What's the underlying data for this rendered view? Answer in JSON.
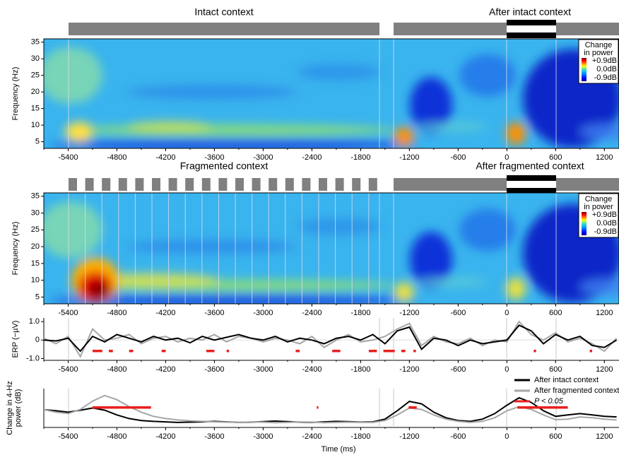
{
  "chart_data": [
    {
      "type": "heatmap",
      "annotations": [
        "Intact context",
        "After intact context"
      ],
      "ylabel": "Frequency (Hz)",
      "xlim": [
        -5700,
        1380
      ],
      "xticks": [
        -5400,
        -4800,
        -4200,
        -3600,
        -3000,
        -2400,
        -1800,
        -1200,
        -600,
        0,
        600,
        1200
      ],
      "ylim": [
        3,
        36
      ],
      "yticks": [
        5,
        10,
        15,
        20,
        25,
        30,
        35
      ],
      "colorbar": {
        "title": [
          "Change",
          "in power"
        ],
        "labels": [
          "+0.9dB",
          "0.0dB",
          "-0.9dB"
        ]
      }
    },
    {
      "type": "heatmap",
      "annotations": [
        "Fragmented context",
        "After fragmented context"
      ],
      "ylabel": "Frequency (Hz)",
      "xlim": [
        -5700,
        1380
      ],
      "xticks": [
        -5400,
        -4800,
        -4200,
        -3600,
        -3000,
        -2400,
        -1800,
        -1200,
        -600,
        0,
        600,
        1200
      ],
      "ylim": [
        3,
        36
      ],
      "yticks": [
        5,
        10,
        15,
        20,
        25,
        30,
        35
      ],
      "colorbar": {
        "title": [
          "Change",
          "in power"
        ],
        "labels": [
          "+0.9dB",
          "0.0dB",
          "-0.9dB"
        ]
      }
    },
    {
      "type": "line",
      "ylabel": [
        "ERP (−µV)"
      ],
      "xlim": [
        -5700,
        1380
      ],
      "xticks": [
        -5400,
        -4800,
        -4200,
        -3600,
        -3000,
        -2400,
        -1800,
        -1200,
        -600,
        0,
        600,
        1200
      ],
      "ylim": [
        -1.1,
        1.2
      ],
      "yticks": [
        {
          "value": 1,
          "label": "1.0"
        },
        0,
        {
          "value": -1,
          "label": "-1.0"
        }
      ],
      "x": [
        -5700,
        -5550,
        -5400,
        -5250,
        -5100,
        -4950,
        -4800,
        -4650,
        -4500,
        -4350,
        -4200,
        -4050,
        -3900,
        -3750,
        -3600,
        -3450,
        -3300,
        -3150,
        -3000,
        -2850,
        -2700,
        -2550,
        -2400,
        -2250,
        -2100,
        -1950,
        -1800,
        -1650,
        -1500,
        -1350,
        -1200,
        -1050,
        -900,
        -750,
        -600,
        -450,
        -300,
        -150,
        0,
        150,
        300,
        450,
        600,
        750,
        900,
        1050,
        1200,
        1350
      ],
      "series": [
        {
          "name": "After fragmented context",
          "color": "#a6a6a6",
          "values": [
            0.1,
            -0.2,
            0.2,
            -0.9,
            0.6,
            0.0,
            0.1,
            0.3,
            -0.2,
            0.1,
            0.2,
            -0.1,
            0.1,
            0.0,
            0.3,
            -0.1,
            0.2,
            0.1,
            -0.1,
            0.1,
            0.0,
            -0.2,
            0.2,
            -0.4,
            0.0,
            0.3,
            -0.1,
            0.0,
            0.2,
            0.6,
            0.9,
            -0.3,
            0.2,
            -0.1,
            -0.2,
            0.1,
            -0.3,
            0.0,
            -0.1,
            1.0,
            0.3,
            0.0,
            0.4,
            -0.1,
            0.1,
            -0.2,
            -0.6,
            0.1
          ]
        },
        {
          "name": "After intact context",
          "color": "#000000",
          "values": [
            0,
            -0.05,
            0.1,
            -0.6,
            0.2,
            -0.1,
            0.3,
            0.1,
            -0.1,
            0.2,
            0.0,
            0.1,
            -0.15,
            0.2,
            0.0,
            0.15,
            0.3,
            0.1,
            0.0,
            0.2,
            -0.1,
            0.1,
            0.0,
            -0.2,
            0.1,
            0.2,
            0.0,
            0.3,
            -0.2,
            0.5,
            0.7,
            -0.5,
            0.1,
            0.0,
            -0.3,
            0.0,
            -0.2,
            -0.1,
            0.0,
            0.8,
            0.5,
            -0.2,
            0.3,
            0.0,
            0.2,
            -0.3,
            -0.4,
            0.0
          ]
        }
      ],
      "significance_color": "#e8201c",
      "significant": [
        {
          "start": -5100,
          "end": -4980
        },
        {
          "start": -4900,
          "end": -4850
        },
        {
          "start": -4650,
          "end": -4600
        },
        {
          "start": -4250,
          "end": -4200
        },
        {
          "start": -3700,
          "end": -3600
        },
        {
          "start": -3450,
          "end": -3420
        },
        {
          "start": -2600,
          "end": -2550
        },
        {
          "start": -2150,
          "end": -2050
        },
        {
          "start": -1700,
          "end": -1600
        },
        {
          "start": -1520,
          "end": -1380
        },
        {
          "start": -1300,
          "end": -1250
        },
        {
          "start": -1150,
          "end": -1120
        },
        {
          "start": 330,
          "end": 360
        },
        {
          "start": 1020,
          "end": 1050
        }
      ]
    },
    {
      "type": "line",
      "ylabel": [
        "Change in 4-Hz",
        "power (dB)"
      ],
      "xlabel": "Time (ms)",
      "xlim": [
        -5700,
        1380
      ],
      "xticks": [
        -5400,
        -4800,
        -4200,
        -3600,
        -3000,
        -2400,
        -1800,
        -1200,
        -600,
        0,
        600,
        1200
      ],
      "ylim": [
        -0.6,
        0.8
      ],
      "x": [
        -5700,
        -5550,
        -5400,
        -5250,
        -5100,
        -4950,
        -4800,
        -4650,
        -4500,
        -4350,
        -4200,
        -4050,
        -3900,
        -3750,
        -3600,
        -3450,
        -3300,
        -3150,
        -3000,
        -2850,
        -2700,
        -2550,
        -2400,
        -2250,
        -2100,
        -1950,
        -1800,
        -1650,
        -1500,
        -1350,
        -1200,
        -1050,
        -900,
        -750,
        -600,
        -450,
        -300,
        -150,
        0,
        150,
        300,
        450,
        600,
        750,
        900,
        1050,
        1200,
        1350
      ],
      "series": [
        {
          "name": "After intact context",
          "color": "#000000",
          "values": [
            0.04,
            0.0,
            -0.05,
            0.02,
            0.1,
            0.02,
            -0.15,
            -0.28,
            -0.35,
            -0.38,
            -0.4,
            -0.42,
            -0.41,
            -0.4,
            -0.38,
            -0.4,
            -0.42,
            -0.41,
            -0.39,
            -0.37,
            -0.39,
            -0.41,
            -0.42,
            -0.4,
            -0.38,
            -0.39,
            -0.41,
            -0.4,
            -0.3,
            0.0,
            0.34,
            0.25,
            -0.05,
            -0.25,
            -0.35,
            -0.38,
            -0.3,
            -0.1,
            0.2,
            0.47,
            0.3,
            0.0,
            -0.2,
            -0.15,
            -0.1,
            -0.15,
            -0.2,
            -0.22
          ]
        },
        {
          "name": "After fragmented context",
          "color": "#a6a6a6",
          "values": [
            0.04,
            -0.05,
            -0.1,
            0.05,
            0.35,
            0.55,
            0.4,
            0.15,
            -0.05,
            -0.2,
            -0.28,
            -0.33,
            -0.36,
            -0.38,
            -0.4,
            -0.41,
            -0.42,
            -0.4,
            -0.41,
            -0.43,
            -0.42,
            -0.4,
            -0.41,
            -0.43,
            -0.42,
            -0.41,
            -0.42,
            -0.42,
            -0.35,
            -0.15,
            0.1,
            0.05,
            -0.15,
            -0.3,
            -0.38,
            -0.42,
            -0.38,
            -0.25,
            0.0,
            0.15,
            0.05,
            -0.15,
            -0.32,
            -0.3,
            -0.22,
            -0.25,
            -0.3,
            -0.33
          ]
        }
      ],
      "significance_label": "P < 0.05",
      "significance_color": "#e8201c",
      "significant": [
        {
          "start": -5100,
          "end": -4380
        },
        {
          "start": -2340,
          "end": -2320
        },
        {
          "start": -1210,
          "end": -1110
        },
        {
          "start": 130,
          "end": 750
        }
      ]
    }
  ]
}
